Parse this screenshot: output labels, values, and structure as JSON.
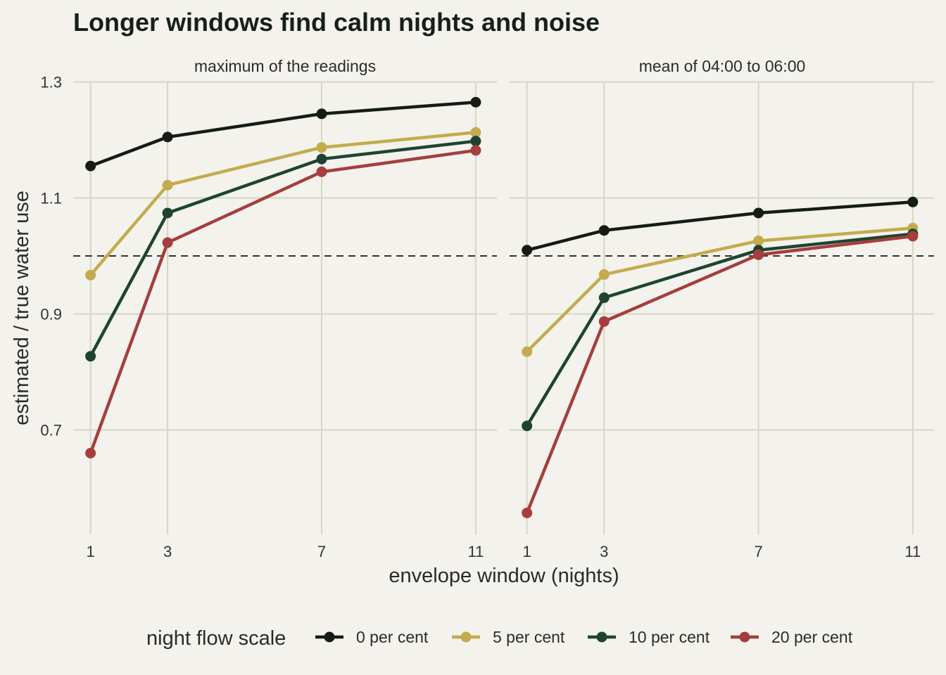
{
  "chart_data": {
    "type": "line",
    "title": "Longer windows find calm nights and noise",
    "xlabel": "envelope window (nights)",
    "ylabel": "estimated / true water use",
    "x": [
      1,
      3,
      7,
      11
    ],
    "xlim": [
      0.55,
      11.55
    ],
    "ylim": [
      0.52,
      1.32
    ],
    "y_ticks": [
      0.7,
      0.9,
      1.1,
      1.3
    ],
    "y_tick_labels": [
      "0.7",
      "0.9",
      "1.1",
      "1.3"
    ],
    "x_tick_labels": [
      "1",
      "3",
      "7",
      "11"
    ],
    "reference_line": 1.0,
    "grid": true,
    "legend": {
      "title": "night flow scale",
      "placement": "bottom",
      "entries": [
        "0 per cent",
        "5 per cent",
        "10 per cent",
        "20 per cent"
      ]
    },
    "colors": [
      "#141c15",
      "#c3ab4e",
      "#1e4431",
      "#a53e3d"
    ],
    "panels": [
      {
        "title": "maximum of the readings",
        "series": [
          {
            "name": "0 per cent",
            "values": [
              1.155,
              1.205,
              1.245,
              1.265
            ]
          },
          {
            "name": "5 per cent",
            "values": [
              0.967,
              1.122,
              1.187,
              1.213
            ]
          },
          {
            "name": "10 per cent",
            "values": [
              0.827,
              1.074,
              1.167,
              1.198
            ]
          },
          {
            "name": "20 per cent",
            "values": [
              0.66,
              1.023,
              1.145,
              1.182
            ]
          }
        ]
      },
      {
        "title": "mean of 04:00 to 06:00",
        "series": [
          {
            "name": "0 per cent",
            "values": [
              1.01,
              1.044,
              1.074,
              1.093
            ]
          },
          {
            "name": "5 per cent",
            "values": [
              0.835,
              0.968,
              1.026,
              1.048
            ]
          },
          {
            "name": "10 per cent",
            "values": [
              0.707,
              0.928,
              1.01,
              1.038
            ]
          },
          {
            "name": "20 per cent",
            "values": [
              0.557,
              0.887,
              1.002,
              1.034
            ]
          }
        ]
      }
    ]
  }
}
